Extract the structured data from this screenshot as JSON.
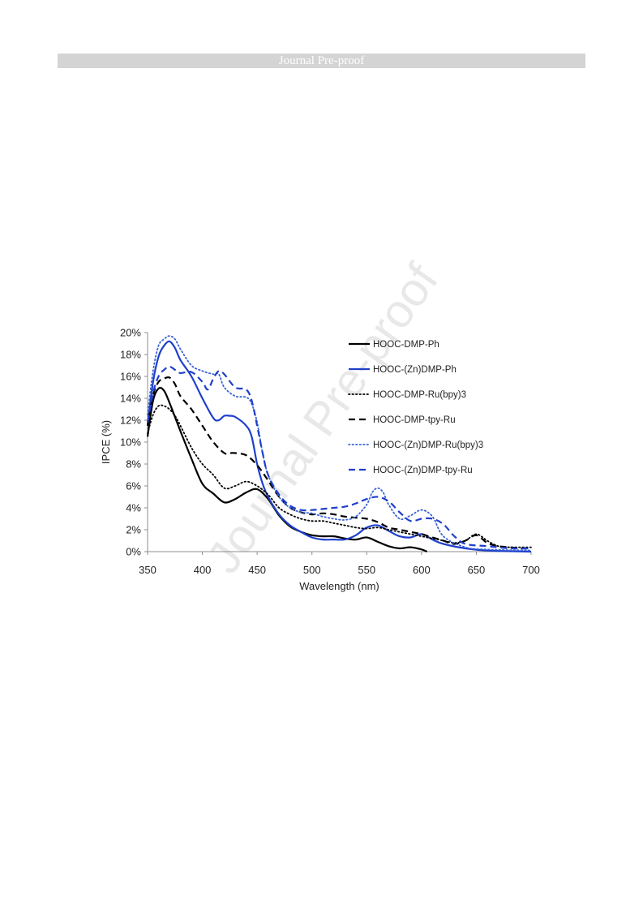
{
  "header": {
    "banner": "Journal Pre-proof"
  },
  "watermark": {
    "text": "Journal Pre-proof"
  },
  "chart_data": {
    "type": "line",
    "title": "",
    "xlabel": "Wavelength (nm)",
    "ylabel": "IPCE (%)",
    "xlim": [
      350,
      700
    ],
    "ylim": [
      0,
      20
    ],
    "xticks": [
      "350",
      "400",
      "450",
      "500",
      "550",
      "600",
      "650",
      "700"
    ],
    "yticks": [
      "0%",
      "2%",
      "4%",
      "6%",
      "8%",
      "10%",
      "12%",
      "14%",
      "16%",
      "18%",
      "20%"
    ],
    "grid": false,
    "legend_position": "top-right",
    "series": [
      {
        "name": "HOOC-DMP-Ph",
        "color": "#000000",
        "style": "solid",
        "x": [
          350,
          355,
          360,
          365,
          370,
          375,
          380,
          390,
          400,
          410,
          420,
          430,
          440,
          450,
          460,
          470,
          480,
          490,
          500,
          510,
          520,
          530,
          540,
          550,
          560,
          570,
          580,
          590,
          600,
          605
        ],
        "y": [
          10.5,
          13.8,
          14.9,
          14.7,
          13.6,
          12.3,
          11.0,
          8.5,
          6.2,
          5.3,
          4.5,
          4.8,
          5.4,
          5.7,
          4.8,
          3.3,
          2.3,
          1.8,
          1.5,
          1.4,
          1.4,
          1.2,
          1.1,
          1.3,
          0.9,
          0.5,
          0.3,
          0.4,
          0.2,
          0.0
        ]
      },
      {
        "name": "HOOC-(Zn)DMP-Ph",
        "color": "#1f3fcc",
        "style": "solid",
        "x": [
          350,
          355,
          360,
          365,
          370,
          375,
          380,
          390,
          400,
          410,
          415,
          420,
          425,
          430,
          440,
          445,
          450,
          455,
          460,
          470,
          480,
          490,
          500,
          510,
          520,
          530,
          540,
          550,
          560,
          570,
          580,
          590,
          600,
          610,
          620,
          640,
          660,
          700
        ],
        "y": [
          11.5,
          15.5,
          17.8,
          18.8,
          19.2,
          18.6,
          17.5,
          16.0,
          14.0,
          12.2,
          12.0,
          12.4,
          12.4,
          12.3,
          11.5,
          10.5,
          8.0,
          6.2,
          5.0,
          3.4,
          2.4,
          1.8,
          1.3,
          1.1,
          1.1,
          1.1,
          1.5,
          2.2,
          2.4,
          1.9,
          1.4,
          1.3,
          1.6,
          1.1,
          0.7,
          0.3,
          0.1,
          0.0
        ]
      },
      {
        "name": "HOOC-DMP-Ru(bpy)3",
        "color": "#000000",
        "style": "dotted",
        "x": [
          350,
          355,
          360,
          365,
          370,
          375,
          380,
          390,
          400,
          410,
          420,
          430,
          440,
          450,
          460,
          470,
          480,
          490,
          500,
          510,
          520,
          530,
          540,
          550,
          560,
          570,
          580,
          590,
          600,
          610,
          620,
          630,
          640,
          650,
          660,
          670,
          680,
          690,
          700
        ],
        "y": [
          10.8,
          12.5,
          13.3,
          13.3,
          13.0,
          12.4,
          11.5,
          9.5,
          8.0,
          7.0,
          5.8,
          6.0,
          6.4,
          6.0,
          5.2,
          4.0,
          3.4,
          3.0,
          2.8,
          2.8,
          2.6,
          2.4,
          2.2,
          2.1,
          2.2,
          2.0,
          1.8,
          1.6,
          1.4,
          1.2,
          1.0,
          0.8,
          1.0,
          1.6,
          1.0,
          0.5,
          0.4,
          0.4,
          0.4
        ]
      },
      {
        "name": "HOOC-DMP-tpy-Ru",
        "color": "#000000",
        "style": "dashed",
        "x": [
          350,
          355,
          360,
          365,
          370,
          375,
          380,
          390,
          400,
          410,
          420,
          425,
          430,
          440,
          450,
          460,
          470,
          480,
          490,
          500,
          510,
          520,
          530,
          540,
          550,
          560,
          570,
          580,
          590,
          600,
          610,
          620,
          630,
          640,
          650,
          660,
          670,
          680,
          690,
          700
        ],
        "y": [
          11.5,
          14.3,
          15.5,
          15.8,
          15.9,
          15.3,
          14.2,
          13.0,
          11.5,
          10.0,
          9.0,
          9.0,
          9.0,
          8.8,
          7.9,
          6.5,
          5.0,
          4.0,
          3.6,
          3.4,
          3.5,
          3.4,
          3.2,
          3.1,
          3.0,
          2.7,
          2.2,
          2.0,
          1.8,
          1.6,
          1.3,
          1.0,
          0.7,
          1.0,
          1.5,
          0.8,
          0.5,
          0.4,
          0.3,
          0.3
        ]
      },
      {
        "name": "HOOC-(Zn)DMP-Ru(bpy)3",
        "color": "#3a63d8",
        "style": "dotted",
        "x": [
          350,
          355,
          360,
          365,
          370,
          375,
          380,
          390,
          400,
          410,
          415,
          420,
          430,
          440,
          445,
          450,
          455,
          460,
          470,
          480,
          490,
          500,
          510,
          520,
          530,
          540,
          550,
          555,
          560,
          565,
          570,
          580,
          590,
          600,
          610,
          620,
          640,
          660,
          700
        ],
        "y": [
          12.5,
          16.5,
          18.8,
          19.4,
          19.7,
          19.4,
          18.5,
          17.0,
          16.5,
          16.2,
          16.2,
          15.0,
          14.2,
          14.1,
          13.5,
          11.8,
          9.0,
          7.0,
          5.0,
          4.0,
          3.6,
          3.5,
          3.2,
          3.0,
          2.9,
          3.2,
          4.3,
          5.4,
          5.8,
          5.4,
          4.3,
          3.0,
          3.3,
          3.8,
          3.2,
          1.4,
          0.4,
          0.2,
          0.1
        ]
      },
      {
        "name": "HOOC-(Zn)DMP-tpy-Ru",
        "color": "#1f3fcc",
        "style": "dashed",
        "x": [
          350,
          355,
          360,
          365,
          370,
          375,
          380,
          390,
          400,
          405,
          410,
          415,
          420,
          430,
          440,
          445,
          450,
          455,
          460,
          470,
          480,
          490,
          500,
          510,
          520,
          530,
          540,
          550,
          560,
          570,
          580,
          590,
          600,
          610,
          620,
          630,
          640,
          660,
          680,
          700
        ],
        "y": [
          11.8,
          14.5,
          16.0,
          16.6,
          16.9,
          16.6,
          16.3,
          16.4,
          15.5,
          14.8,
          15.8,
          16.5,
          16.2,
          15.0,
          14.8,
          13.8,
          11.5,
          9.0,
          7.0,
          5.2,
          4.2,
          3.8,
          3.8,
          3.9,
          4.0,
          4.1,
          4.4,
          4.8,
          5.0,
          4.6,
          3.6,
          2.8,
          3.0,
          3.0,
          2.5,
          1.4,
          0.7,
          0.5,
          0.3,
          0.3
        ]
      }
    ]
  }
}
